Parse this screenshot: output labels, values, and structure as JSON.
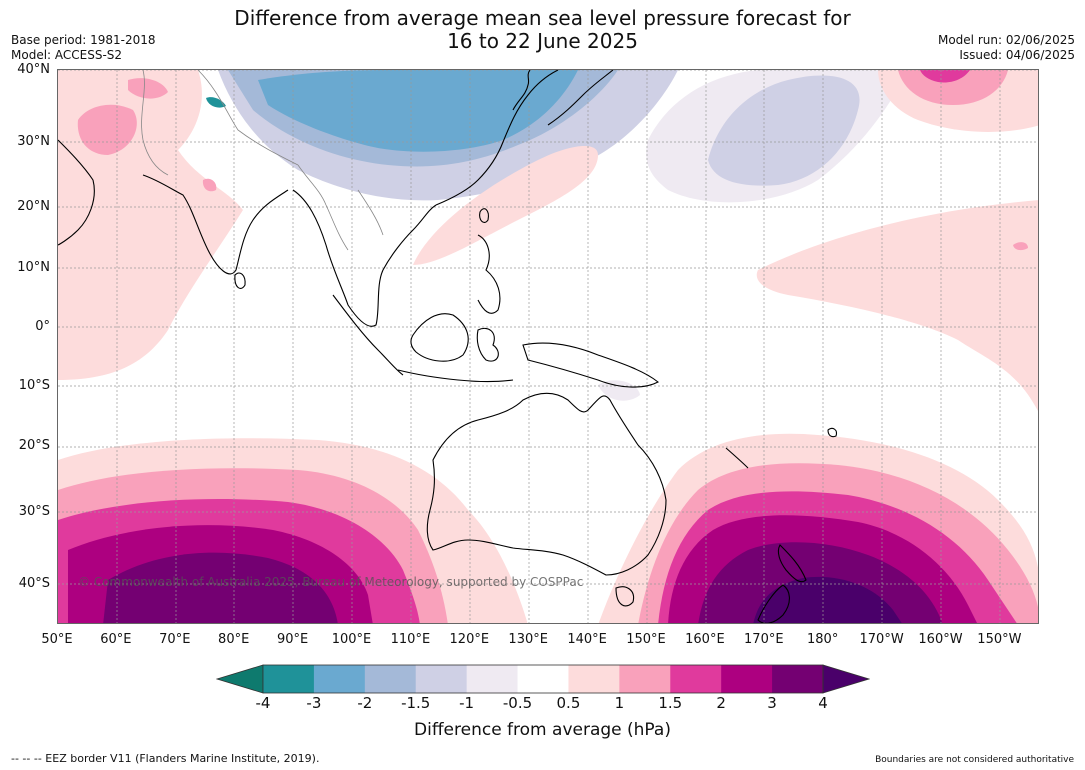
{
  "header": {
    "title_line1": "Difference from average mean sea level pressure forecast for",
    "title_line2": "16 to 22 June 2025",
    "base_period": "Base period: 1981-2018",
    "model": "Model: ACCESS-S2",
    "model_run": "Model run: 02/06/2025",
    "issued": "Issued: 04/06/2025"
  },
  "map": {
    "copyright": "© Commonwealth of Australia 2025, Bureau of Meteorology, supported by COSPPac",
    "lat_labels": [
      "40°N",
      "30°N",
      "20°N",
      "10°N",
      "0°",
      "10°S",
      "20°S",
      "30°S",
      "40°S"
    ],
    "lon_labels": [
      "50°E",
      "60°E",
      "70°E",
      "80°E",
      "90°E",
      "100°E",
      "110°E",
      "120°E",
      "130°E",
      "140°E",
      "150°E",
      "160°E",
      "170°E",
      "180°",
      "170°W",
      "160°W",
      "150°W"
    ],
    "colors": {
      "land_outline": "#000000",
      "border": "#888888",
      "grid": "#999999"
    }
  },
  "colorbar": {
    "ticks": [
      "-4",
      "-3",
      "-2",
      "-1.5",
      "-1",
      "-0.5",
      "0.5",
      "1",
      "1.5",
      "2",
      "3",
      "4"
    ],
    "colors": [
      "#0e7a6e",
      "#1f9299",
      "#6aa9d0",
      "#a4b9d8",
      "#cfd0e5",
      "#efeaf2",
      "#ffffff",
      "#fddcdc",
      "#f9a1bb",
      "#e03a9d",
      "#ad0080",
      "#740072",
      "#4a006a"
    ],
    "title": "Difference from average (hPa)"
  },
  "footer": {
    "eez_note": "--  --  -- EEZ border V11 (Flanders Marine Institute, 2019).",
    "boundaries_note": "Boundaries are not considered authoritative"
  }
}
